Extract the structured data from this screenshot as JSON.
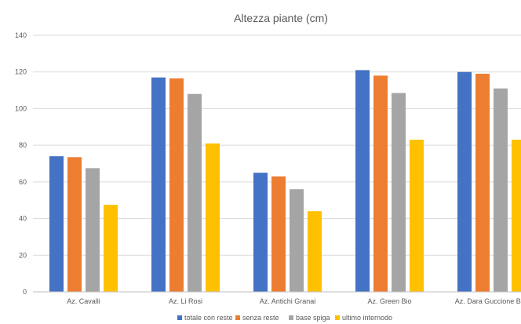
{
  "chart_data": {
    "type": "bar",
    "title": "Altezza piante (cm)",
    "xlabel": "",
    "ylabel": "",
    "ylim": [
      0,
      140
    ],
    "yticks": [
      0,
      20,
      40,
      60,
      80,
      100,
      120,
      140
    ],
    "grid": true,
    "legend_position": "bottom",
    "categories": [
      "Az. Cavalli",
      "Az. Li Rosi",
      "Az. Antichi Granai",
      "Az. Green Bio",
      "Az. Dara Guccione Biof"
    ],
    "series": [
      {
        "name": "totale con reste",
        "color": "#4472c4",
        "values": [
          74,
          117,
          65,
          121,
          120
        ]
      },
      {
        "name": "senza reste",
        "color": "#ed7d31",
        "values": [
          73.5,
          116.5,
          63,
          118,
          119
        ]
      },
      {
        "name": "base spiga",
        "color": "#a5a5a5",
        "values": [
          67.5,
          108,
          56,
          108.5,
          111
        ]
      },
      {
        "name": "ultimo internodo",
        "color": "#ffc000",
        "values": [
          47.5,
          81,
          44,
          83,
          83
        ]
      }
    ]
  }
}
